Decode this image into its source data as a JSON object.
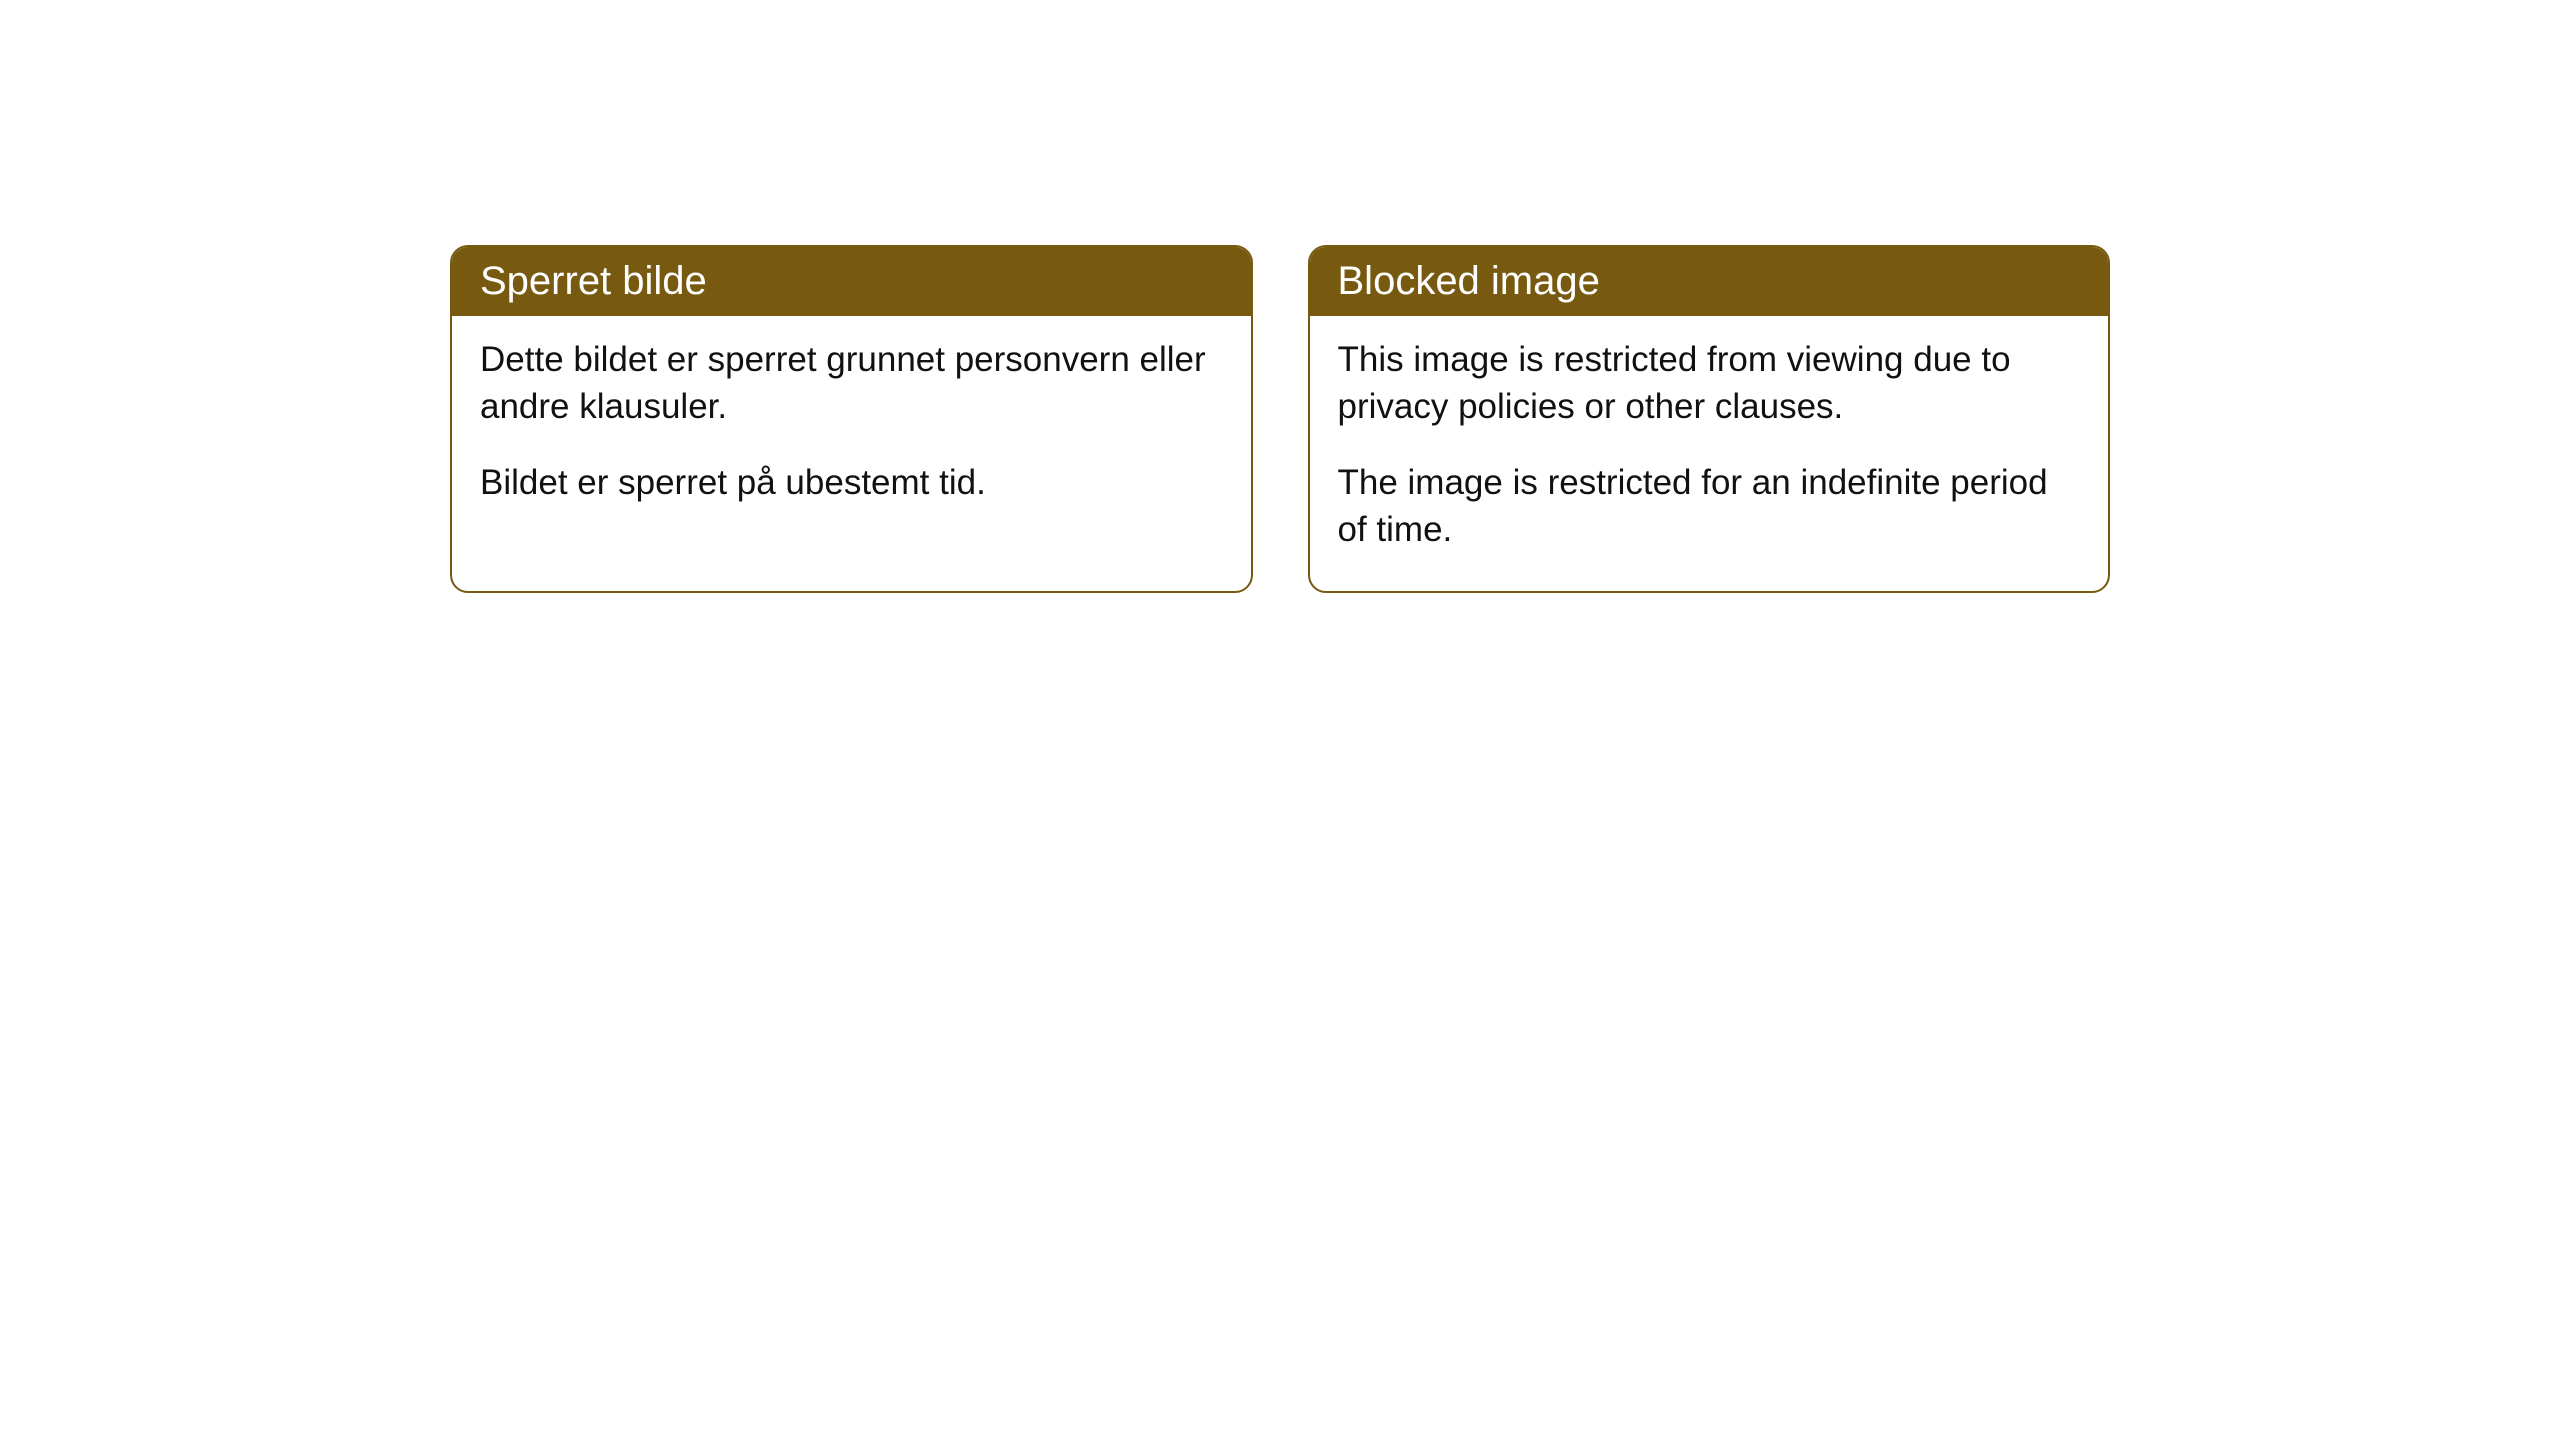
{
  "cards": {
    "norwegian": {
      "title": "Sperret bilde",
      "paragraph1": "Dette bildet er sperret grunnet personvern eller andre klausuler.",
      "paragraph2": "Bildet er sperret på ubestemt tid."
    },
    "english": {
      "title": "Blocked image",
      "paragraph1": "This image is restricted from viewing due to privacy policies or other clauses.",
      "paragraph2": "The image is restricted for an indefinite period of time."
    }
  },
  "styling": {
    "header_bg_color": "#775a10",
    "header_text_color": "#ffffff",
    "border_color": "#775a10",
    "body_bg_color": "#ffffff",
    "body_text_color": "#111111",
    "border_radius": 18,
    "header_fontsize": 40,
    "body_fontsize": 35
  }
}
